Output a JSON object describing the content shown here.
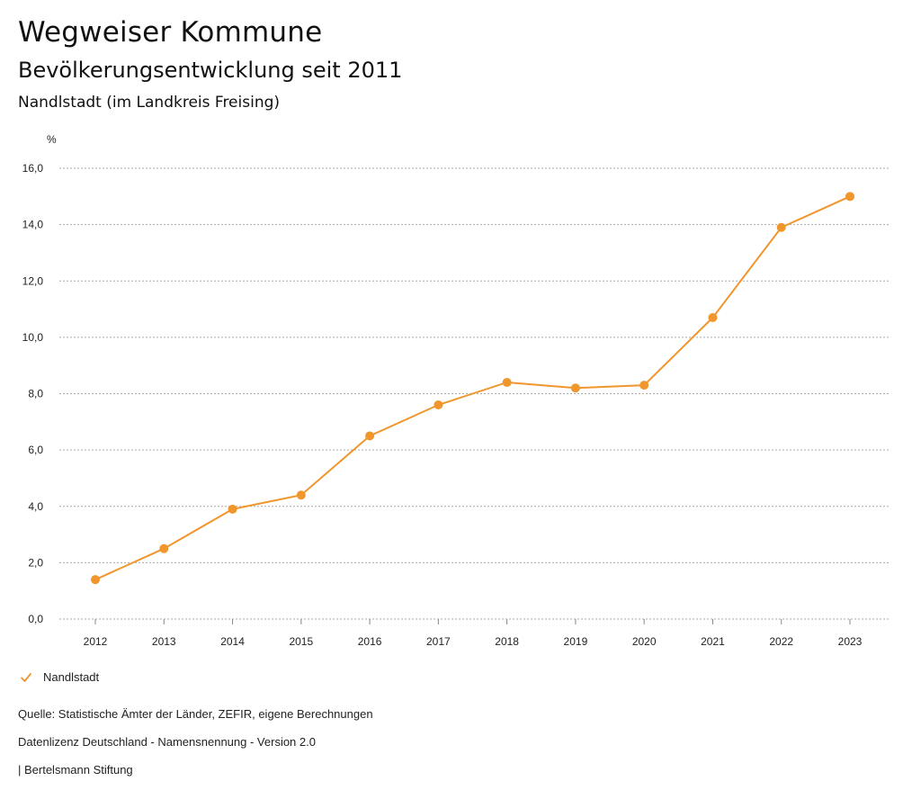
{
  "header": {
    "title": "Wegweiser Kommune",
    "subtitle": "Bevölkerungsentwicklung seit 2011",
    "region": "Nandlstadt (im Landkreis Freising)"
  },
  "chart_data": {
    "type": "line",
    "title": "Bevölkerungsentwicklung seit 2011",
    "ylabel": "%",
    "xlabel": "",
    "ylim": [
      0,
      16
    ],
    "yticks": [
      0,
      2,
      4,
      6,
      8,
      10,
      12,
      14,
      16
    ],
    "ytick_labels": [
      "0,0",
      "2,0",
      "4,0",
      "6,0",
      "8,0",
      "10,0",
      "12,0",
      "14,0",
      "16,0"
    ],
    "grid": true,
    "legend_position": "bottom-left",
    "categories": [
      "2012",
      "2013",
      "2014",
      "2015",
      "2016",
      "2017",
      "2018",
      "2019",
      "2020",
      "2021",
      "2022",
      "2023"
    ],
    "series": [
      {
        "name": "Nandlstadt",
        "color": "#F0962D",
        "values": [
          1.4,
          2.5,
          3.9,
          4.4,
          6.5,
          7.6,
          8.4,
          8.2,
          8.3,
          10.7,
          13.9,
          15.0
        ]
      }
    ]
  },
  "legend": {
    "label": "Nandlstadt",
    "icon": "checkmark-icon"
  },
  "footer": {
    "source": "Quelle: Statistische Ämter der Länder, ZEFIR, eigene Berechnungen",
    "license": "Datenlizenz Deutschland - Namensnennung - Version 2.0",
    "publisher": "| Bertelsmann Stiftung"
  }
}
